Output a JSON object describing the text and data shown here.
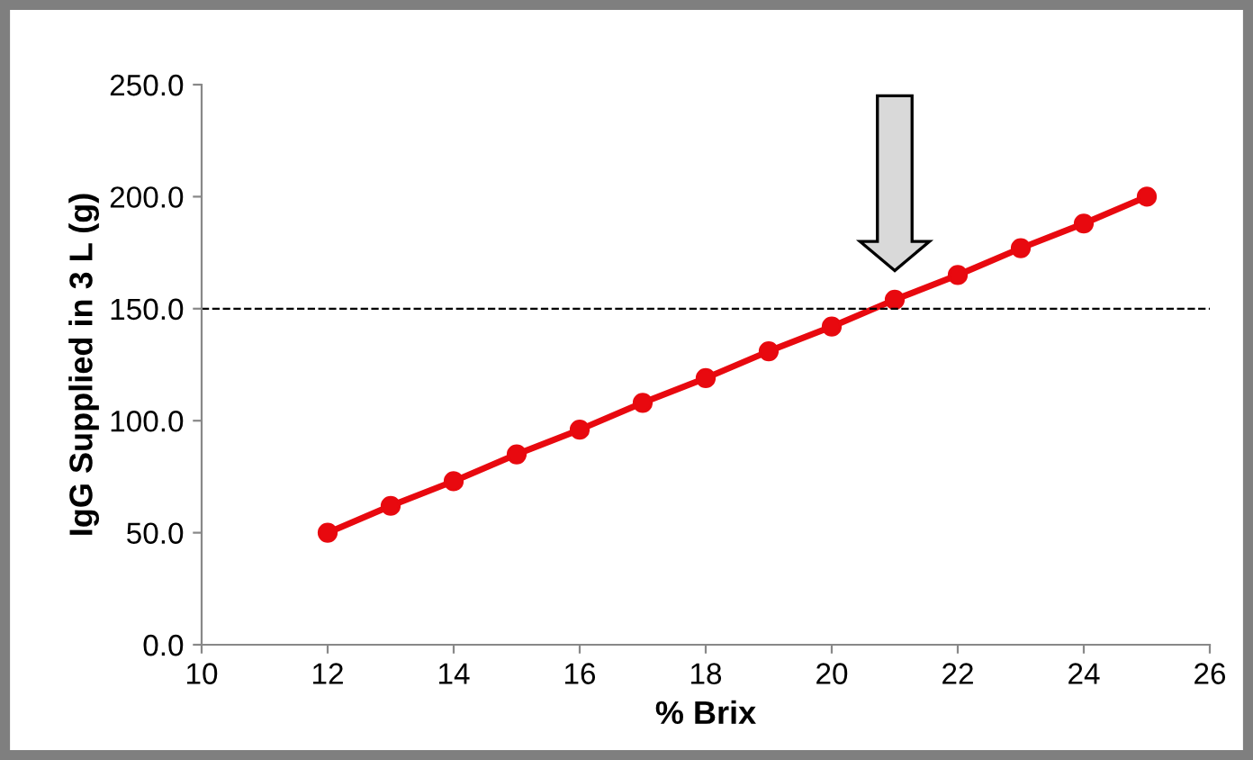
{
  "chart_data": {
    "type": "line",
    "xlabel": "% Brix",
    "ylabel": "IgG Supplied in 3 L (g)",
    "x": [
      12,
      13,
      14,
      15,
      16,
      17,
      18,
      19,
      20,
      21,
      22,
      23,
      24,
      25
    ],
    "series": [
      {
        "color": "#e8090f",
        "values": [
          50,
          62,
          73,
          85,
          96,
          108,
          119,
          131,
          142,
          154,
          165,
          177,
          188,
          200
        ]
      }
    ],
    "marker": "circle",
    "line_style": "solid",
    "xlim": [
      10,
      26
    ],
    "xticks": [
      10,
      12,
      14,
      16,
      18,
      20,
      22,
      24,
      26
    ],
    "ylim": [
      0,
      250
    ],
    "yticks": [
      {
        "value": 0,
        "label": "0.0"
      },
      {
        "value": 50,
        "label": "50.0"
      },
      {
        "value": 100,
        "label": "100.0"
      },
      {
        "value": 150,
        "label": "150.0"
      },
      {
        "value": 200,
        "label": "200.0"
      },
      {
        "value": 250,
        "label": "250.0"
      }
    ],
    "ref_lines": [
      {
        "axis": "y",
        "value": 150,
        "color": "#000000",
        "line_style": "dashed"
      }
    ],
    "grid": false,
    "legend": false
  }
}
